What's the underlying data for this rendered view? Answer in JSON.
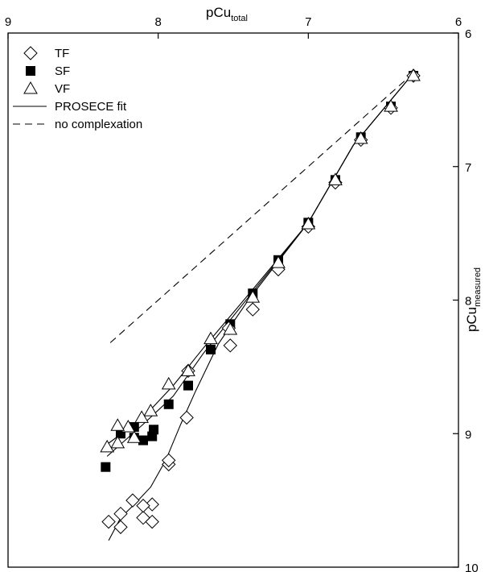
{
  "chart_data": {
    "type": "scatter",
    "x_axis": {
      "label_main": "pCu",
      "label_sub": "total",
      "range": [
        9,
        6
      ],
      "ticks": [
        "9",
        "8",
        "7",
        "6"
      ],
      "tick_values": [
        9,
        8,
        7,
        6
      ],
      "position": "top",
      "reversed": true
    },
    "y_axis": {
      "label_main": "pCu",
      "label_sub": "measured",
      "range": [
        6,
        10
      ],
      "ticks": [
        "6",
        "7",
        "8",
        "9",
        "10"
      ],
      "tick_values": [
        6,
        7,
        8,
        9,
        10
      ],
      "position": "right",
      "reversed": true
    },
    "grid": false,
    "legend_position": "top-left",
    "legend": [
      {
        "label": "TF",
        "marker": "diamond-open"
      },
      {
        "label": "SF",
        "marker": "square-filled"
      },
      {
        "label": "VF",
        "marker": "triangle-open"
      },
      {
        "label": "PROSECE fit",
        "marker": "solid-line"
      },
      {
        "label": "no complexation",
        "marker": "dashed-line"
      }
    ],
    "series": [
      {
        "name": "TF",
        "marker": "diamond-open",
        "points": [
          [
            6.3,
            6.32
          ],
          [
            6.45,
            6.56
          ],
          [
            6.65,
            6.8
          ],
          [
            6.82,
            7.12
          ],
          [
            7.0,
            7.45
          ],
          [
            7.2,
            7.77
          ],
          [
            7.37,
            8.07
          ],
          [
            7.52,
            8.34
          ],
          [
            7.53,
            8.21
          ],
          [
            7.8,
            8.53
          ],
          [
            7.81,
            8.88
          ],
          [
            7.93,
            9.23
          ],
          [
            7.93,
            9.2
          ],
          [
            8.04,
            9.53
          ],
          [
            8.04,
            9.66
          ],
          [
            8.1,
            9.63
          ],
          [
            8.1,
            9.54
          ],
          [
            8.17,
            9.5
          ],
          [
            8.25,
            9.6
          ],
          [
            8.25,
            9.7
          ],
          [
            8.33,
            9.66
          ]
        ]
      },
      {
        "name": "SF",
        "marker": "square-filled",
        "points": [
          [
            6.3,
            6.32
          ],
          [
            6.45,
            6.55
          ],
          [
            6.65,
            6.78
          ],
          [
            6.82,
            7.1
          ],
          [
            7.0,
            7.42
          ],
          [
            7.2,
            7.7
          ],
          [
            7.37,
            7.95
          ],
          [
            7.52,
            8.18
          ],
          [
            7.65,
            8.37
          ],
          [
            7.8,
            8.64
          ],
          [
            7.93,
            8.78
          ],
          [
            8.03,
            8.97
          ],
          [
            8.04,
            9.02
          ],
          [
            8.1,
            9.05
          ],
          [
            8.16,
            8.95
          ],
          [
            8.16,
            9.03
          ],
          [
            8.25,
            9.0
          ],
          [
            8.35,
            9.25
          ]
        ]
      },
      {
        "name": "VF",
        "marker": "triangle-open",
        "points": [
          [
            6.3,
            6.32
          ],
          [
            6.45,
            6.55
          ],
          [
            6.65,
            6.79
          ],
          [
            6.82,
            7.1
          ],
          [
            7.0,
            7.43
          ],
          [
            7.2,
            7.72
          ],
          [
            7.37,
            7.98
          ],
          [
            7.52,
            8.22
          ],
          [
            7.65,
            8.29
          ],
          [
            7.8,
            8.53
          ],
          [
            7.93,
            8.63
          ],
          [
            8.05,
            8.83
          ],
          [
            8.11,
            8.88
          ],
          [
            8.16,
            9.03
          ],
          [
            8.2,
            8.95
          ],
          [
            8.27,
            9.07
          ],
          [
            8.27,
            8.94
          ],
          [
            8.34,
            9.1
          ]
        ]
      }
    ],
    "fit_lines": [
      {
        "name": "PROSECE fit TF",
        "style": "solid",
        "points": [
          [
            6.3,
            6.3
          ],
          [
            6.7,
            6.84
          ],
          [
            7.0,
            7.42
          ],
          [
            7.4,
            8.0
          ],
          [
            7.6,
            8.33
          ],
          [
            7.75,
            8.68
          ],
          [
            7.85,
            8.93
          ],
          [
            7.95,
            9.2
          ],
          [
            8.05,
            9.4
          ],
          [
            8.15,
            9.52
          ],
          [
            8.25,
            9.63
          ],
          [
            8.33,
            9.8
          ]
        ]
      },
      {
        "name": "PROSECE fit SF",
        "style": "solid",
        "points": [
          [
            6.3,
            6.3
          ],
          [
            6.7,
            6.84
          ],
          [
            7.0,
            7.42
          ],
          [
            7.4,
            7.98
          ],
          [
            7.7,
            8.4
          ],
          [
            7.9,
            8.72
          ],
          [
            8.1,
            8.93
          ],
          [
            8.34,
            9.17
          ]
        ]
      },
      {
        "name": "PROSECE fit VF",
        "style": "solid",
        "points": [
          [
            6.3,
            6.3
          ],
          [
            6.7,
            6.84
          ],
          [
            7.0,
            7.42
          ],
          [
            7.4,
            7.96
          ],
          [
            7.7,
            8.36
          ],
          [
            7.9,
            8.64
          ],
          [
            8.1,
            8.88
          ],
          [
            8.34,
            9.08
          ]
        ]
      },
      {
        "name": "no complexation",
        "style": "dashed",
        "points": [
          [
            6.3,
            6.3
          ],
          [
            8.34,
            8.34
          ]
        ]
      }
    ]
  }
}
